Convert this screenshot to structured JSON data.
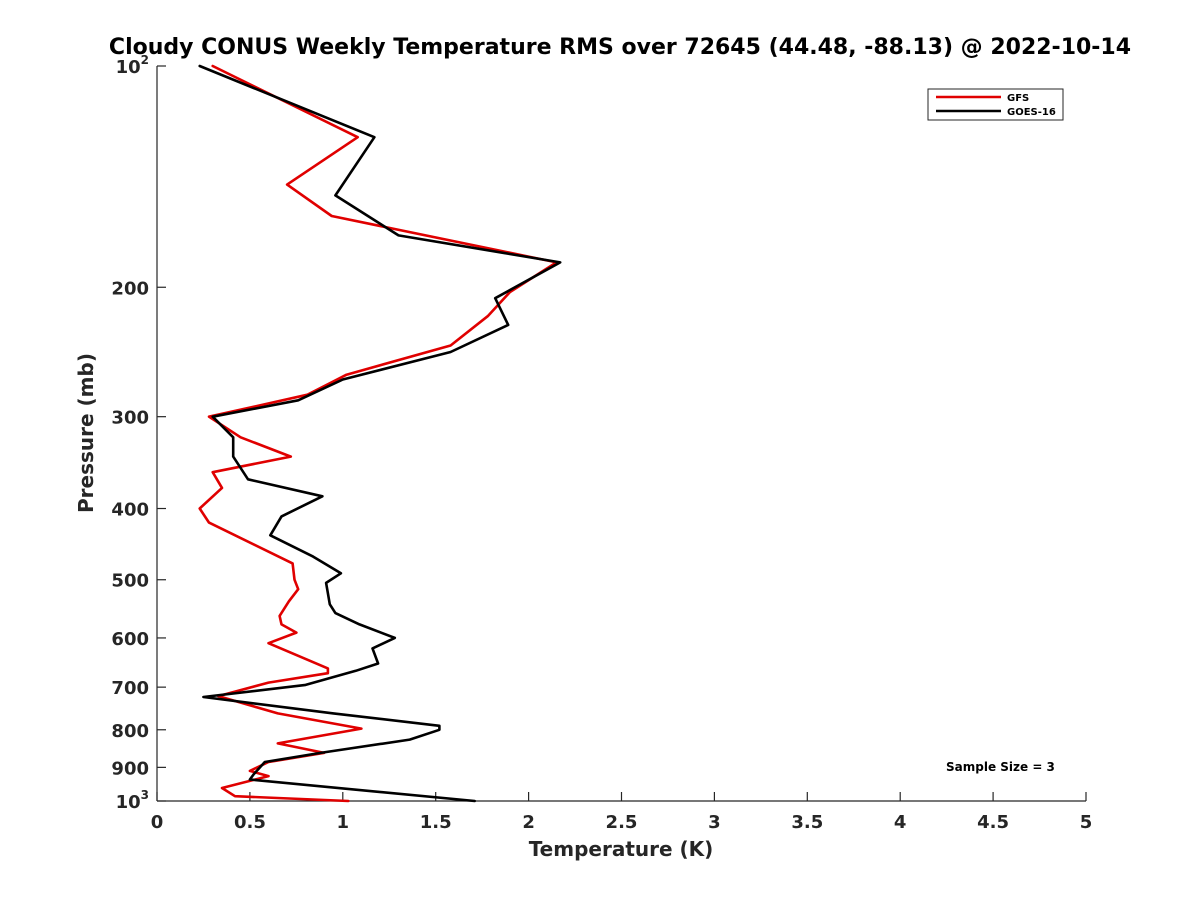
{
  "chart_data": {
    "type": "line",
    "title": "Cloudy CONUS Weekly Temperature RMS over 72645 (44.48, -88.13) @ 2022-10-14",
    "xlabel": "Temperature (K)",
    "ylabel": "Pressure (mb)",
    "xlim": [
      0,
      5
    ],
    "ylim": [
      100,
      1000
    ],
    "y_scale": "log",
    "y_reversed": true,
    "x_ticks": [
      "0",
      "0.5",
      "1",
      "1.5",
      "2",
      "2.5",
      "3",
      "3.5",
      "4",
      "4.5",
      "5"
    ],
    "y_ticks": [
      {
        "value": 100,
        "base": "10",
        "exp": "2"
      },
      {
        "value": 200,
        "label": "200"
      },
      {
        "value": 300,
        "label": "300"
      },
      {
        "value": 400,
        "label": "400"
      },
      {
        "value": 500,
        "label": "500"
      },
      {
        "value": 600,
        "label": "600"
      },
      {
        "value": 700,
        "label": "700"
      },
      {
        "value": 800,
        "label": "800"
      },
      {
        "value": 900,
        "label": "900"
      },
      {
        "value": 1000,
        "base": "10",
        "exp": "3"
      }
    ],
    "legend_position": "top-right",
    "annotation": "Sample Size = 3",
    "series": [
      {
        "name": "GFS",
        "color": "#e00000",
        "points": [
          [
            0.3,
            100
          ],
          [
            1.08,
            125
          ],
          [
            0.7,
            145
          ],
          [
            0.94,
            160
          ],
          [
            2.15,
            185
          ],
          [
            1.9,
            203
          ],
          [
            1.78,
            219
          ],
          [
            1.58,
            240
          ],
          [
            1.02,
            263
          ],
          [
            0.81,
            280
          ],
          [
            0.28,
            300
          ],
          [
            0.45,
            320
          ],
          [
            0.72,
            340
          ],
          [
            0.3,
            357
          ],
          [
            0.35,
            375
          ],
          [
            0.23,
            400
          ],
          [
            0.28,
            418
          ],
          [
            0.73,
            475
          ],
          [
            0.74,
            500
          ],
          [
            0.76,
            515
          ],
          [
            0.71,
            535
          ],
          [
            0.66,
            560
          ],
          [
            0.67,
            575
          ],
          [
            0.75,
            590
          ],
          [
            0.6,
            610
          ],
          [
            0.92,
            660
          ],
          [
            0.92,
            670
          ],
          [
            0.6,
            690
          ],
          [
            0.33,
            720
          ],
          [
            0.65,
            760
          ],
          [
            1.1,
            797
          ],
          [
            0.65,
            835
          ],
          [
            0.9,
            860
          ],
          [
            0.6,
            885
          ],
          [
            0.5,
            910
          ],
          [
            0.6,
            925
          ],
          [
            0.35,
            960
          ],
          [
            0.42,
            985
          ],
          [
            1.03,
            1000
          ]
        ]
      },
      {
        "name": "GOES-16",
        "color": "#000000",
        "points": [
          [
            0.23,
            100
          ],
          [
            1.17,
            125
          ],
          [
            0.96,
            150
          ],
          [
            1.3,
            170
          ],
          [
            2.17,
            185
          ],
          [
            1.82,
            207
          ],
          [
            1.89,
            225
          ],
          [
            1.58,
            245
          ],
          [
            1.0,
            267
          ],
          [
            0.76,
            285
          ],
          [
            0.3,
            300
          ],
          [
            0.41,
            320
          ],
          [
            0.41,
            340
          ],
          [
            0.49,
            365
          ],
          [
            0.89,
            385
          ],
          [
            0.67,
            410
          ],
          [
            0.61,
            435
          ],
          [
            0.84,
            465
          ],
          [
            0.99,
            490
          ],
          [
            0.91,
            505
          ],
          [
            0.93,
            540
          ],
          [
            0.96,
            555
          ],
          [
            1.09,
            575
          ],
          [
            1.28,
            600
          ],
          [
            1.16,
            620
          ],
          [
            1.19,
            650
          ],
          [
            1.07,
            665
          ],
          [
            0.8,
            695
          ],
          [
            0.25,
            722
          ],
          [
            0.95,
            760
          ],
          [
            1.52,
            790
          ],
          [
            1.52,
            800
          ],
          [
            1.36,
            825
          ],
          [
            0.88,
            860
          ],
          [
            0.58,
            885
          ],
          [
            0.52,
            920
          ],
          [
            0.5,
            935
          ],
          [
            1.71,
            1000
          ]
        ]
      }
    ]
  }
}
